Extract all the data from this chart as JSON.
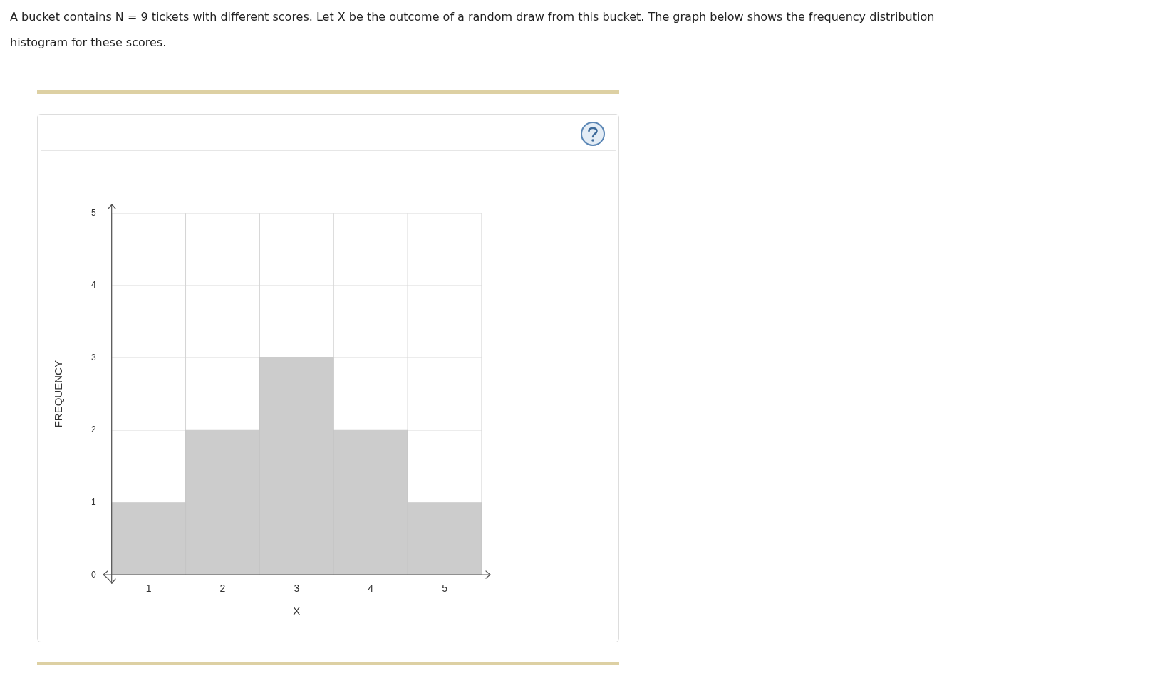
{
  "chart_data": {
    "type": "histogram",
    "title": "A bucket contains N = 9 tickets with different scores. Let X be the outcome of a random draw from this bucket. The graph below shows the frequency distribution histogram for these scores.",
    "xlabel": "X",
    "ylabel": "FREQUENCY",
    "bins": [
      0.5,
      1.5,
      2.5,
      3.5,
      4.5,
      5.5
    ],
    "values": [
      1,
      2,
      3,
      2,
      1
    ],
    "color": "#cccccc",
    "xlim": [
      0.5,
      5.5
    ],
    "xticks": [
      1,
      2,
      3,
      4,
      5
    ],
    "ylim": [
      0,
      5
    ],
    "yticks": [
      0,
      1,
      2,
      3,
      4,
      5
    ],
    "grid": true,
    "legend": false
  }
}
